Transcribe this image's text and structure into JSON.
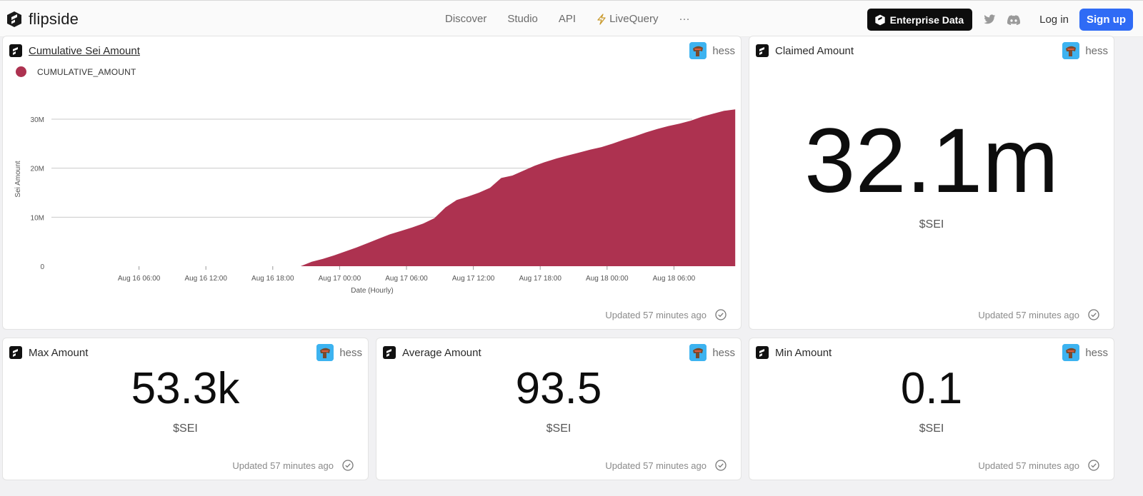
{
  "nav": {
    "brand": "flipside",
    "items": [
      "Discover",
      "Studio",
      "API",
      "LiveQuery"
    ],
    "more": "···",
    "enterprise": "Enterprise Data",
    "login": "Log in",
    "signup": "Sign up"
  },
  "cards": {
    "cumulative": {
      "title": "Cumulative Sei Amount",
      "author": "hess",
      "legend": "CUMULATIVE_AMOUNT",
      "updated": "Updated 57 minutes ago"
    },
    "claimed": {
      "title": "Claimed Amount",
      "author": "hess",
      "value": "32.1m",
      "unit": "$SEI",
      "updated": "Updated 57 minutes ago"
    },
    "max": {
      "title": "Max Amount",
      "author": "hess",
      "value": "53.3k",
      "unit": "$SEI",
      "updated": "Updated 57 minutes ago"
    },
    "average": {
      "title": "Average Amount",
      "author": "hess",
      "value": "93.5",
      "unit": "$SEI",
      "updated": "Updated 57 minutes ago"
    },
    "min": {
      "title": "Min Amount",
      "author": "hess",
      "value": "0.1",
      "unit": "$SEI",
      "updated": "Updated 57 minutes ago"
    }
  },
  "colors": {
    "series": "#ad3250",
    "signup": "#2f6bf5"
  },
  "chart_data": {
    "type": "area",
    "xlabel": "Date (Hourly)",
    "ylabel": "Sei Amount",
    "ylim": [
      0,
      30000000
    ],
    "yticks": [
      0,
      10000000,
      20000000,
      30000000
    ],
    "ytick_labels": [
      "0",
      "10M",
      "20M",
      "30M"
    ],
    "xticks": [
      6,
      12,
      18,
      24,
      30,
      36,
      42,
      48,
      54
    ],
    "xtick_labels": [
      "Aug 16 06:00",
      "Aug 16 12:00",
      "Aug 16 18:00",
      "Aug 17 00:00",
      "Aug 17 06:00",
      "Aug 17 12:00",
      "Aug 17 18:00",
      "Aug 18 00:00",
      "Aug 18 06:00"
    ],
    "x_unit": "hours since Aug 16 00:00",
    "xlim": [
      0,
      60
    ],
    "grid": true,
    "legend": "top-left",
    "series": [
      {
        "name": "CUMULATIVE_AMOUNT",
        "x": [
          20.5,
          21.5,
          22.5,
          23.5,
          24.5,
          25.5,
          26.5,
          27.5,
          28.5,
          29.5,
          30.5,
          31.5,
          32.5,
          33.5,
          34.5,
          35.5,
          36.5,
          37.5,
          38.5,
          39.5,
          40.5,
          41.5,
          42.5,
          43.5,
          44.5,
          45.5,
          46.5,
          47.5,
          48.5,
          49.5,
          50.5,
          51.5,
          52.5,
          53.5,
          54.5,
          55.5,
          56.5,
          57.5,
          58.5,
          59.5
        ],
        "values": [
          0,
          900000,
          1500000,
          2200000,
          3000000,
          3800000,
          4700000,
          5600000,
          6500000,
          7200000,
          7900000,
          8700000,
          9800000,
          12000000,
          13500000,
          14200000,
          15000000,
          16000000,
          18000000,
          18500000,
          19500000,
          20500000,
          21300000,
          22000000,
          22600000,
          23200000,
          23800000,
          24300000,
          25000000,
          25800000,
          26500000,
          27300000,
          28000000,
          28600000,
          29100000,
          29700000,
          30500000,
          31100000,
          31700000,
          32000000
        ]
      }
    ]
  }
}
